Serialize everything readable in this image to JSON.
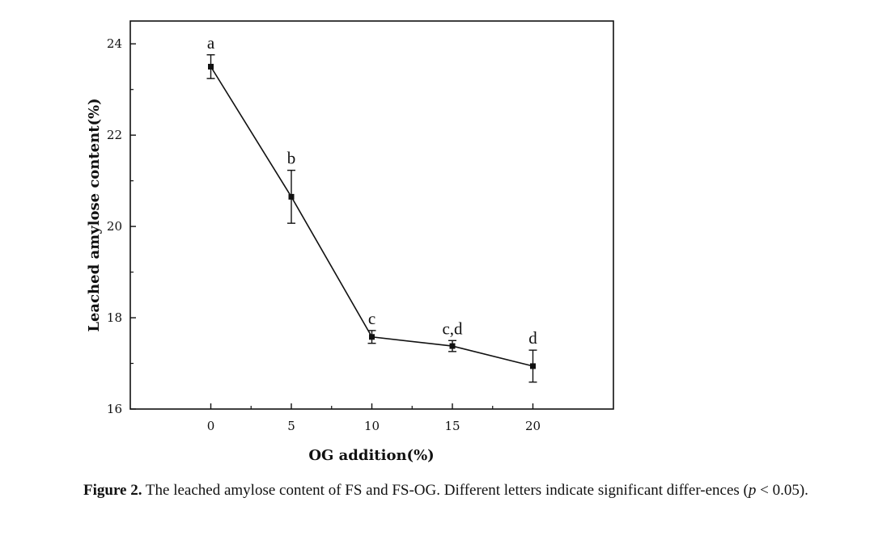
{
  "chart_data": {
    "type": "line",
    "xlabel": "OG addition(%)",
    "ylabel": "Leached amylose content(%)",
    "xlim": [
      -5,
      25
    ],
    "ylim": [
      16,
      24.5
    ],
    "x_ticks": [
      "0",
      "5",
      "10",
      "15",
      "20"
    ],
    "y_ticks": [
      "16",
      "18",
      "20",
      "22",
      "24"
    ],
    "grid": false,
    "series": [
      {
        "x": [
          0,
          5,
          10,
          15,
          20
        ],
        "y": [
          23.5,
          20.65,
          17.58,
          17.38,
          16.94
        ],
        "error": [
          0.26,
          0.58,
          0.14,
          0.12,
          0.35
        ],
        "labels": [
          "a",
          "b",
          "c",
          "c,d",
          "d"
        ]
      }
    ]
  },
  "caption": {
    "label": "Figure 2.",
    "text_before_p": "The leached amylose content of FS and FS-OG. Different letters indicate significant differ-ences (",
    "p": "p",
    "text_after_p": " < 0.05)."
  }
}
